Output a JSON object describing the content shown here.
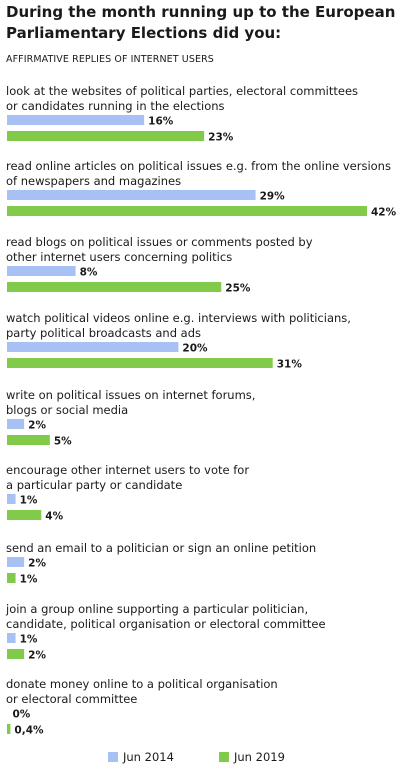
{
  "chart_data": {
    "type": "bar",
    "title": "During the month running up to the European Parliamentary Elections did you:",
    "subtitle": "AFFIRMATIVE REPLIES OF INTERNET USERS",
    "categories": [
      [
        "look at the websites of political parties, electoral committees",
        "or candidates running in the elections"
      ],
      [
        "read online articles on political issues e.g. from the online versions",
        "of newspapers and magazines"
      ],
      [
        "read blogs on political issues or comments posted by",
        "other internet users concerning politics"
      ],
      [
        "watch political videos online e.g. interviews with politicians,",
        "party political broadcasts and ads"
      ],
      [
        "write on political issues on internet forums,",
        "blogs or social media"
      ],
      [
        "encourage other internet users to vote for",
        "a particular party or candidate"
      ],
      [
        "send an email to a politician or sign an online petition"
      ],
      [
        "join a group online supporting a particular politician,",
        "candidate, political organisation or electoral committee"
      ],
      [
        "donate money online to a political organisation",
        "or electoral committee"
      ]
    ],
    "series": [
      {
        "name": "Jun 2014",
        "color": "#a8c1f5",
        "values": [
          16,
          29,
          8,
          20,
          2,
          1,
          2,
          1,
          0
        ],
        "labels": [
          "16%",
          "29%",
          "8%",
          "20%",
          "2%",
          "1%",
          "2%",
          "1%",
          "0%"
        ]
      },
      {
        "name": "Jun 2019",
        "color": "#82cb4a",
        "values": [
          23,
          42,
          25,
          31,
          5,
          4,
          1,
          2,
          0.4
        ],
        "labels": [
          "23%",
          "42%",
          "25%",
          "31%",
          "5%",
          "4%",
          "1%",
          "2%",
          "0,4%"
        ]
      }
    ],
    "xlim": [
      0,
      42
    ],
    "legend": "bottom"
  }
}
